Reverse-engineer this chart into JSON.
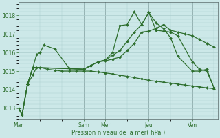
{
  "background_color": "#cce8e8",
  "grid_color": "#aacccc",
  "line_color": "#2d6e2d",
  "text_color": "#2d6e2d",
  "xlabel": "Pression niveau de la mer( hPa )",
  "ylim": [
    1012.4,
    1018.7
  ],
  "yticks": [
    1013,
    1014,
    1015,
    1016,
    1017,
    1018
  ],
  "day_labels": [
    "Mar",
    "Sam",
    "Mer",
    "Jeu",
    "Ven"
  ],
  "day_positions": [
    0,
    36,
    48,
    72,
    96
  ],
  "xmin": 0,
  "xmax": 110,
  "line1_x": [
    0,
    2,
    5,
    8,
    10,
    12,
    16,
    20,
    24,
    28,
    32,
    36,
    40,
    44,
    48,
    52,
    56,
    60,
    64,
    68,
    72,
    76,
    80,
    84,
    88,
    92,
    96,
    100,
    104,
    108
  ],
  "line1_y": [
    1013.0,
    1012.65,
    1014.3,
    1014.8,
    1015.2,
    1015.2,
    1015.1,
    1015.05,
    1015.0,
    1015.0,
    1015.0,
    1015.0,
    1015.0,
    1014.95,
    1014.9,
    1014.85,
    1014.78,
    1014.72,
    1014.65,
    1014.58,
    1014.5,
    1014.45,
    1014.4,
    1014.35,
    1014.3,
    1014.25,
    1014.2,
    1014.15,
    1014.1,
    1014.05
  ],
  "line2_x": [
    0,
    2,
    5,
    8,
    10,
    12,
    14,
    20,
    28,
    36,
    40,
    44,
    48,
    52,
    56,
    60,
    64,
    68,
    72,
    76,
    80,
    84,
    88,
    92,
    96,
    100,
    104,
    108
  ],
  "line2_y": [
    1013.0,
    1012.65,
    1014.3,
    1015.2,
    1015.9,
    1016.0,
    1016.4,
    1016.2,
    1015.15,
    1015.1,
    1015.3,
    1015.5,
    1015.55,
    1015.65,
    1015.75,
    1016.1,
    1016.5,
    1017.1,
    1017.15,
    1017.3,
    1017.5,
    1017.2,
    1017.1,
    1017.0,
    1016.9,
    1016.7,
    1016.5,
    1016.3
  ],
  "line3_x": [
    0,
    2,
    5,
    8,
    36,
    40,
    44,
    48,
    52,
    56,
    60,
    64,
    68,
    72,
    76,
    80,
    84,
    88,
    96,
    100,
    104,
    108
  ],
  "line3_y": [
    1013.0,
    1012.65,
    1014.3,
    1015.2,
    1015.1,
    1015.3,
    1015.5,
    1015.6,
    1016.0,
    1017.45,
    1017.5,
    1018.2,
    1017.5,
    1018.15,
    1017.6,
    1017.3,
    1016.8,
    1015.8,
    1015.0,
    1015.0,
    1015.1,
    1014.1
  ],
  "line4_x": [
    0,
    2,
    5,
    8,
    36,
    40,
    44,
    48,
    52,
    56,
    60,
    64,
    68,
    72,
    76,
    80,
    84,
    88,
    96,
    100,
    104,
    108
  ],
  "line4_y": [
    1013.0,
    1012.65,
    1014.3,
    1015.2,
    1015.1,
    1015.3,
    1015.5,
    1015.6,
    1015.85,
    1016.1,
    1016.6,
    1017.1,
    1017.5,
    1018.15,
    1017.2,
    1017.15,
    1017.1,
    1016.9,
    1015.5,
    1015.1,
    1015.0,
    1014.1
  ]
}
